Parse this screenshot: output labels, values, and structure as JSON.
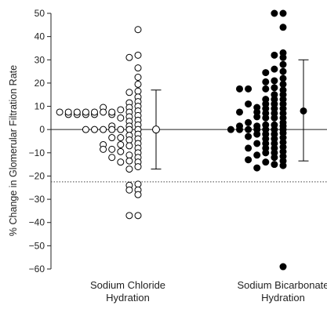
{
  "chart_data": {
    "type": "scatter",
    "ylabel": "% Change in Glomerular Filtration Rate",
    "ylim": [
      -60,
      50
    ],
    "yticks": [
      50,
      40,
      30,
      20,
      10,
      0,
      -10,
      -20,
      -30,
      -40,
      -50,
      -60
    ],
    "reference_line": -22.5,
    "categories": [
      [
        "Sodium Chloride",
        "Hydration"
      ],
      [
        "Sodium Bicarbonate",
        "Hydration"
      ]
    ],
    "series": [
      {
        "name": "Sodium Chloride Hydration",
        "marker": "open",
        "points": [
          [
            1,
            7.5
          ],
          [
            2,
            6.5
          ],
          [
            2,
            7.5
          ],
          [
            3,
            6.5
          ],
          [
            3,
            7.5
          ],
          [
            4,
            6.5
          ],
          [
            4,
            7.5
          ],
          [
            4,
            0
          ],
          [
            5,
            6.5
          ],
          [
            5,
            7.5
          ],
          [
            5,
            0
          ],
          [
            6,
            9.5
          ],
          [
            6,
            7.5
          ],
          [
            6,
            0
          ],
          [
            6,
            -6.5
          ],
          [
            6,
            -8.5
          ],
          [
            7,
            6.5
          ],
          [
            7,
            7.5
          ],
          [
            7,
            1.5
          ],
          [
            7,
            0
          ],
          [
            7,
            -3.5
          ],
          [
            7,
            -8.5
          ],
          [
            7,
            -12
          ],
          [
            8,
            8.5
          ],
          [
            8,
            5
          ],
          [
            8,
            0
          ],
          [
            8,
            -3.5
          ],
          [
            8,
            -6.5
          ],
          [
            8,
            -9.5
          ],
          [
            8,
            -14
          ],
          [
            9,
            31
          ],
          [
            9,
            16
          ],
          [
            9,
            11.5
          ],
          [
            9,
            9.5
          ],
          [
            9,
            7.5
          ],
          [
            9,
            5.5
          ],
          [
            9,
            3.5
          ],
          [
            9,
            1.5
          ],
          [
            9,
            0
          ],
          [
            9,
            -2.5
          ],
          [
            9,
            -4.5
          ],
          [
            9,
            -7
          ],
          [
            9,
            -11
          ],
          [
            9,
            -13.5
          ],
          [
            9,
            -17
          ],
          [
            9,
            -24
          ],
          [
            9,
            -26
          ],
          [
            9,
            -37
          ],
          [
            10,
            43
          ],
          [
            10,
            32
          ],
          [
            10,
            26.5
          ],
          [
            10,
            22.5
          ],
          [
            10,
            19.5
          ],
          [
            10,
            16.5
          ],
          [
            10,
            14
          ],
          [
            10,
            12
          ],
          [
            10,
            10
          ],
          [
            10,
            8
          ],
          [
            10,
            6
          ],
          [
            10,
            4
          ],
          [
            10,
            2
          ],
          [
            10,
            0
          ],
          [
            10,
            -2
          ],
          [
            10,
            -4
          ],
          [
            10,
            -6
          ],
          [
            10,
            -8
          ],
          [
            10,
            -10
          ],
          [
            10,
            -12
          ],
          [
            10,
            -14
          ],
          [
            10,
            -16
          ],
          [
            10,
            -23.5
          ],
          [
            10,
            -26
          ],
          [
            10,
            -28
          ],
          [
            10,
            -37
          ]
        ],
        "summary": {
          "mean": 0,
          "upper": 17,
          "lower": -17
        }
      },
      {
        "name": "Sodium Bicarbonate Hydration",
        "marker": "filled",
        "points": [
          [
            1,
            0
          ],
          [
            2,
            17.5
          ],
          [
            2,
            7.5
          ],
          [
            2,
            1.5
          ],
          [
            2,
            0
          ],
          [
            3,
            17.5
          ],
          [
            3,
            11
          ],
          [
            3,
            3
          ],
          [
            3,
            0
          ],
          [
            3,
            -3
          ],
          [
            3,
            -8
          ],
          [
            3,
            -13
          ],
          [
            4,
            9.5
          ],
          [
            4,
            7.5
          ],
          [
            4,
            5.5
          ],
          [
            4,
            1.5
          ],
          [
            4,
            0
          ],
          [
            4,
            -2
          ],
          [
            4,
            -6
          ],
          [
            4,
            -11
          ],
          [
            4,
            -16.5
          ],
          [
            5,
            24.5
          ],
          [
            5,
            20.5
          ],
          [
            5,
            17.5
          ],
          [
            5,
            13
          ],
          [
            5,
            11
          ],
          [
            5,
            9
          ],
          [
            5,
            7
          ],
          [
            5,
            5
          ],
          [
            5,
            2
          ],
          [
            5,
            0
          ],
          [
            5,
            -2
          ],
          [
            5,
            -4
          ],
          [
            5,
            -6
          ],
          [
            5,
            -8
          ],
          [
            5,
            -10
          ],
          [
            5,
            -14
          ],
          [
            6,
            50
          ],
          [
            6,
            32
          ],
          [
            6,
            26
          ],
          [
            6,
            21
          ],
          [
            6,
            18
          ],
          [
            6,
            15
          ],
          [
            6,
            13
          ],
          [
            6,
            11
          ],
          [
            6,
            9
          ],
          [
            6,
            7
          ],
          [
            6,
            5
          ],
          [
            6,
            2
          ],
          [
            6,
            0
          ],
          [
            6,
            -2
          ],
          [
            6,
            -4
          ],
          [
            6,
            -6
          ],
          [
            6,
            -8
          ],
          [
            6,
            -10
          ],
          [
            6,
            -12
          ],
          [
            6,
            -15
          ],
          [
            7,
            50
          ],
          [
            7,
            44
          ],
          [
            7,
            33
          ],
          [
            7,
            31
          ],
          [
            7,
            28
          ],
          [
            7,
            25
          ],
          [
            7,
            22
          ],
          [
            7,
            19.5
          ],
          [
            7,
            17
          ],
          [
            7,
            15
          ],
          [
            7,
            13
          ],
          [
            7,
            11
          ],
          [
            7,
            9
          ],
          [
            7,
            7
          ],
          [
            7,
            5
          ],
          [
            7,
            3
          ],
          [
            7,
            1.5
          ],
          [
            7,
            0
          ],
          [
            7,
            -1.5
          ],
          [
            7,
            -3.5
          ],
          [
            7,
            -5.5
          ],
          [
            7,
            -7.5
          ],
          [
            7,
            -9.5
          ],
          [
            7,
            -11.5
          ],
          [
            7,
            -13.5
          ],
          [
            7,
            -15.5
          ],
          [
            7,
            -59
          ]
        ],
        "summary": {
          "mean": 8,
          "upper": 30,
          "lower": -13.5
        }
      }
    ]
  }
}
